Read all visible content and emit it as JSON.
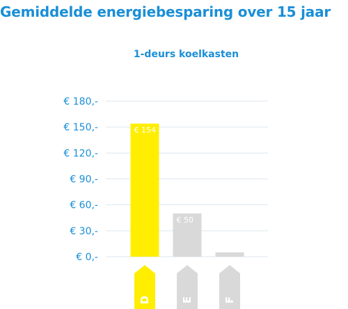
{
  "chart_data": {
    "type": "bar",
    "title": "Gemiddelde energiebesparing over 15 jaar",
    "subtitle": "1-deurs koelkasten",
    "categories": [
      "D",
      "E",
      "F"
    ],
    "values": [
      154,
      50,
      5
    ],
    "value_labels": [
      "€ 154",
      "€ 50",
      ""
    ],
    "ylim": [
      0,
      180
    ],
    "yticks": [
      0,
      30,
      60,
      90,
      120,
      150,
      180
    ],
    "ytick_labels": [
      "€ 0,-",
      "€ 30,-",
      "€ 60,-",
      "€ 90,-",
      "€ 120,-",
      "€ 150,-",
      "€ 180,-"
    ],
    "grid": true,
    "colors": {
      "accent": "#1a8fd6",
      "bar_highlight": "#ffee00",
      "bar_muted": "#d9d9d9",
      "label_highlight": "#ffee00",
      "label_muted": "#d9d9d9",
      "grid": "#dde6ee"
    }
  }
}
